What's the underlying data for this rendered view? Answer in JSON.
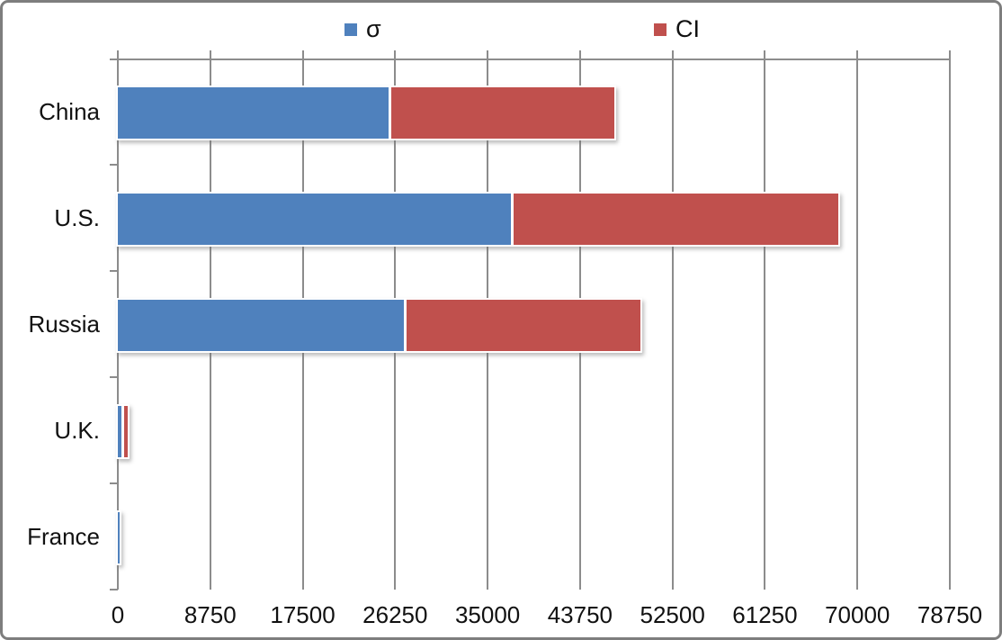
{
  "chart_data": {
    "type": "bar",
    "orientation": "horizontal",
    "stacked": true,
    "title": "",
    "categories": [
      "China",
      "U.S.",
      "Russia",
      "U.K.",
      "France"
    ],
    "series": [
      {
        "name": "σ",
        "color": "#4F81BD",
        "values": [
          25600,
          37200,
          27100,
          350,
          150
        ]
      },
      {
        "name": "CI",
        "color": "#C0504D",
        "values": [
          21100,
          30700,
          22100,
          350,
          0
        ]
      }
    ],
    "x_tick_labels": [
      "0",
      "8750",
      "17500",
      "26250",
      "35000",
      "43750",
      "52500",
      "61250",
      "70000",
      "78750"
    ],
    "xlim": [
      0,
      78750
    ],
    "grid": true,
    "legend_position": "top",
    "axis_color": "#8c8c8c",
    "text_color": "#111111",
    "background_color": "#ffffff"
  }
}
